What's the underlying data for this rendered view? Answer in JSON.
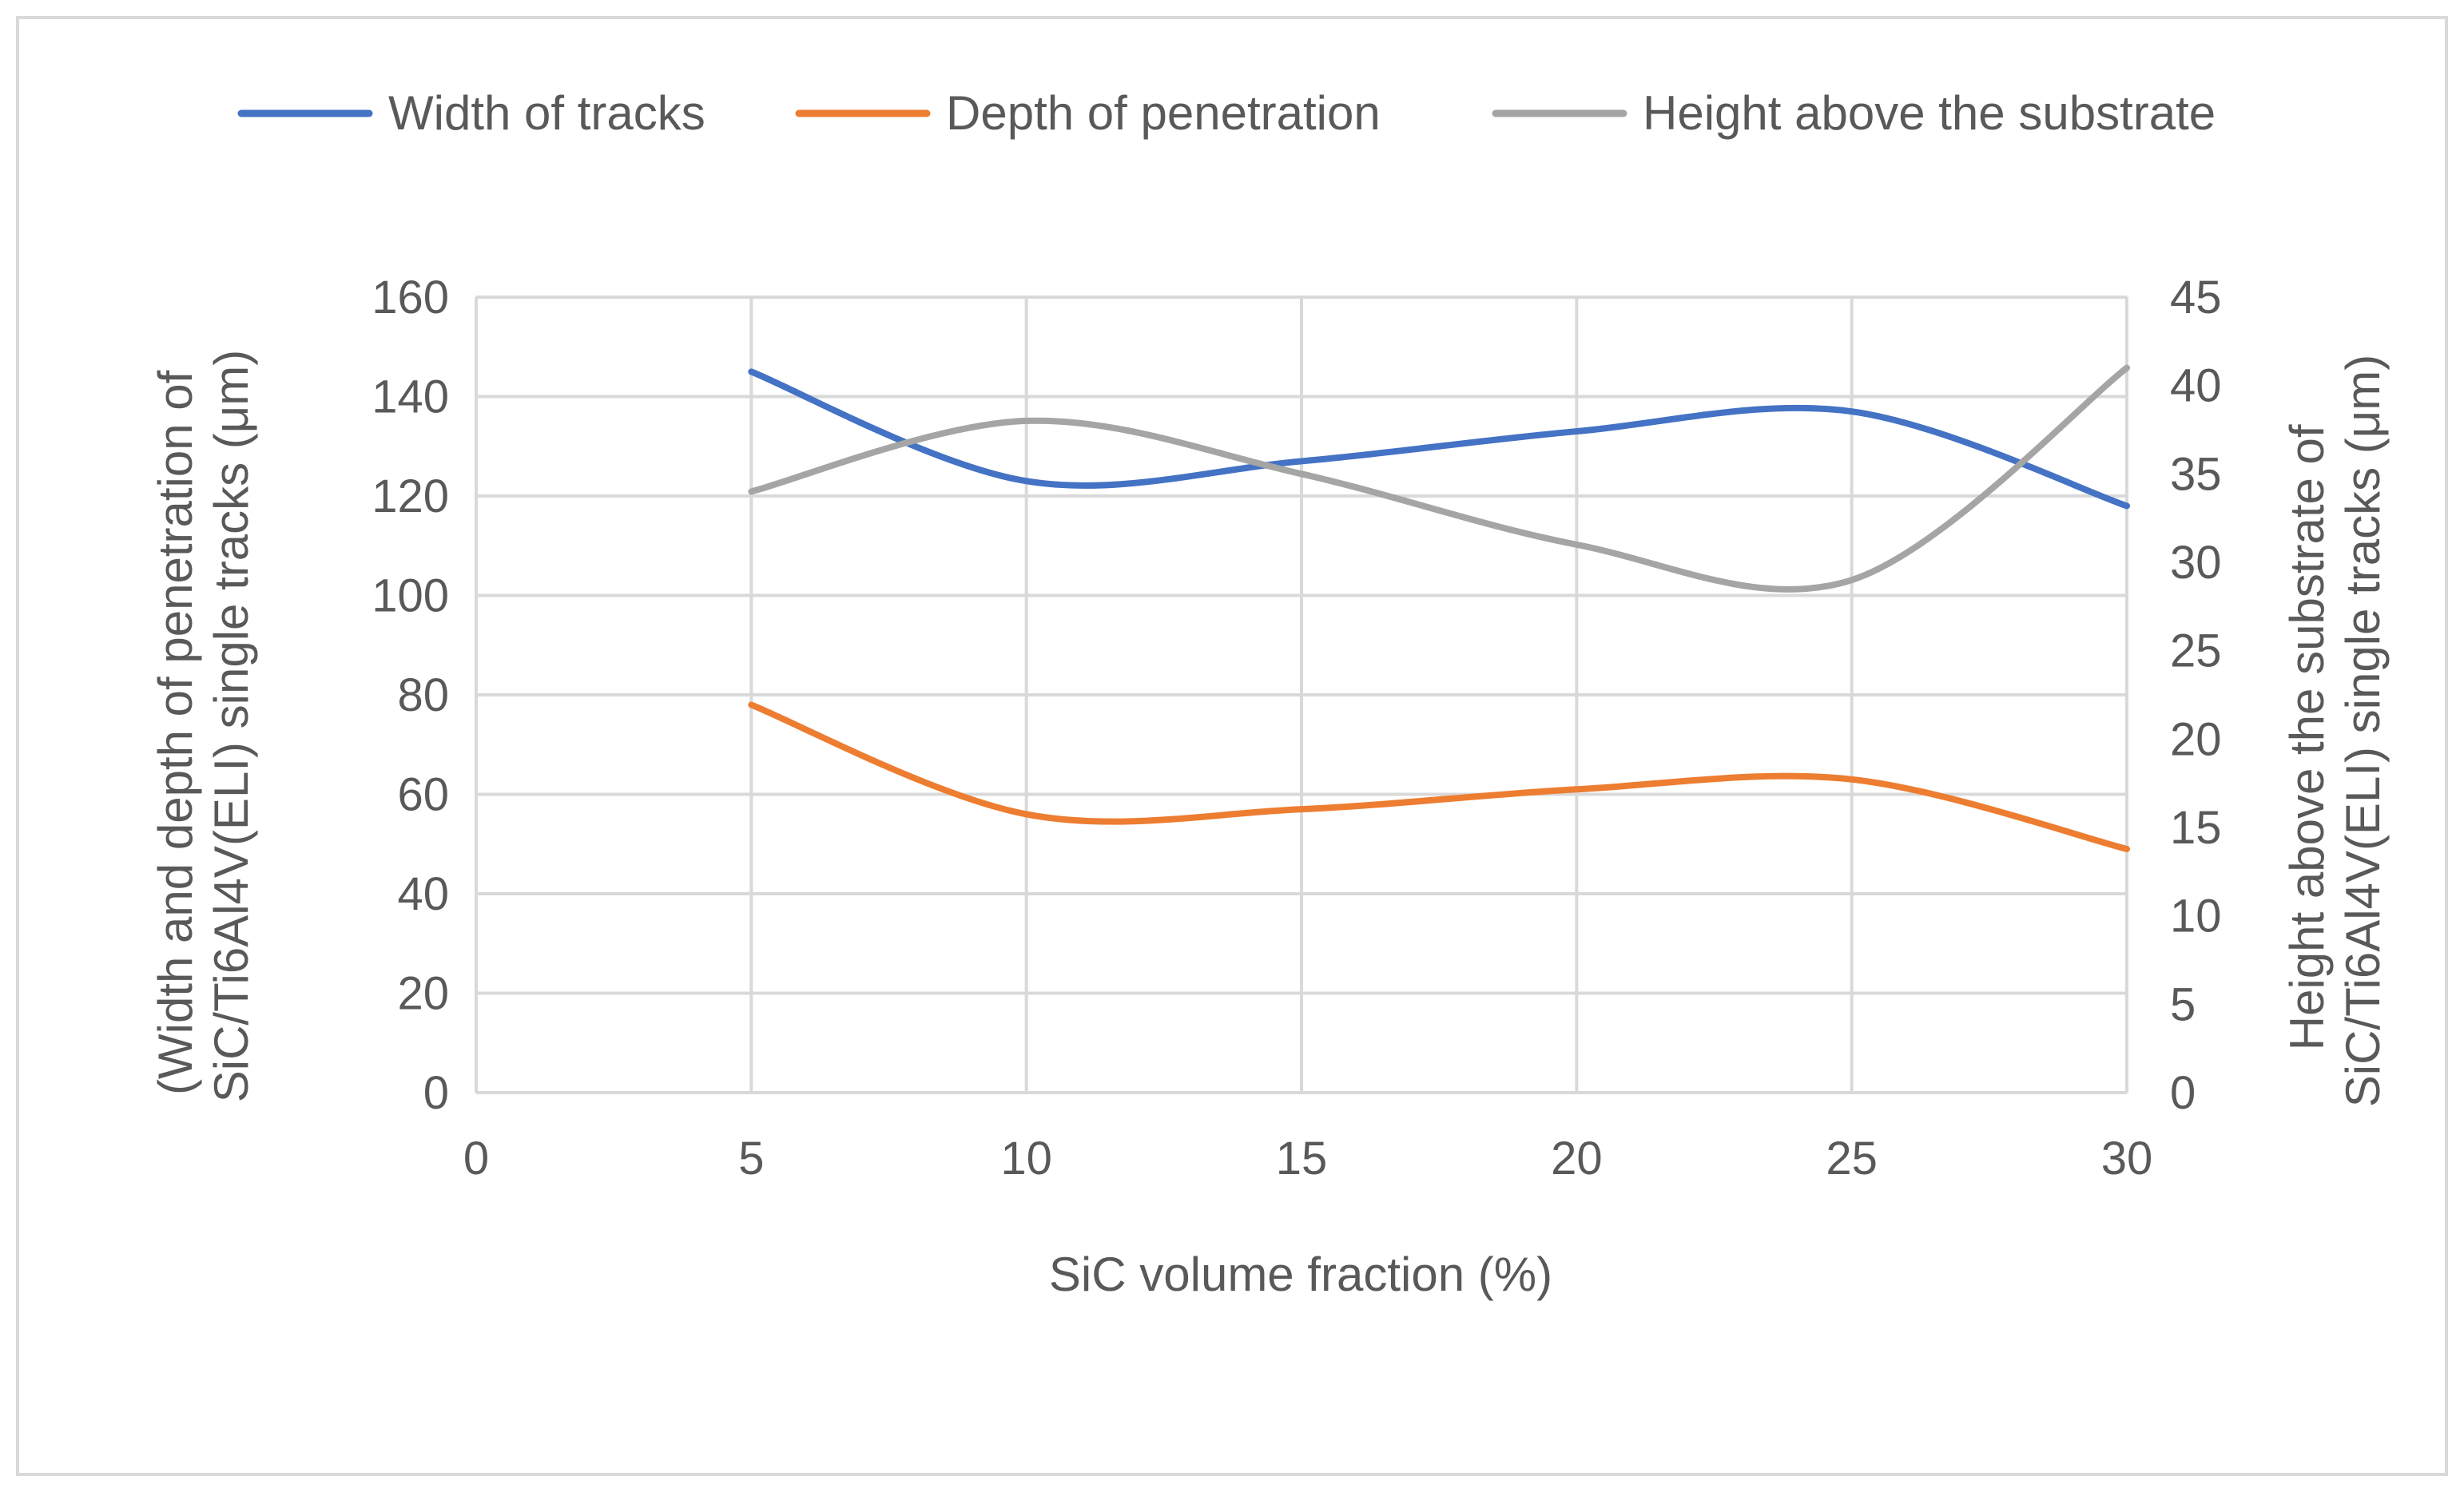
{
  "chart_data": {
    "type": "line",
    "title": "",
    "xlabel": "SiC volume fraction (%)",
    "ylabel_left": "(Width and depth of penetration of SiC/Ti6Al4V(ELI) single tracks (μm)",
    "ylabel_left_lines": [
      "(Width and depth of penetration of",
      "SiC/Ti6Al4V(ELI) single tracks (μm)"
    ],
    "ylabel_right": "Height above the substrate of SiC/Ti6Al4V(ELI) single tracks (μm)",
    "ylabel_right_lines": [
      "Height above the substrate of",
      "SiC/Ti6Al4V(ELI) single tracks (μm)"
    ],
    "xlim": [
      0,
      30
    ],
    "ylim_left": [
      0,
      160
    ],
    "ylim_right": [
      0,
      45
    ],
    "x_ticks": [
      "0",
      "5",
      "10",
      "15",
      "20",
      "25",
      "30"
    ],
    "y_left_ticks": [
      "0",
      "20",
      "40",
      "60",
      "80",
      "100",
      "120",
      "140",
      "160"
    ],
    "y_right_ticks": [
      "0",
      "5",
      "10",
      "15",
      "20",
      "25",
      "30",
      "35",
      "40",
      "45"
    ],
    "legend_position": "top",
    "x": [
      5,
      10,
      15,
      20,
      25,
      30
    ],
    "series": [
      {
        "name": "Width of tracks",
        "axis": "left",
        "color": "#4472c4",
        "values": [
          145,
          123,
          127,
          133,
          137,
          118
        ]
      },
      {
        "name": "Depth of penetration",
        "axis": "left",
        "color": "#ed7d31",
        "values": [
          78,
          56,
          57,
          61,
          63,
          49
        ]
      },
      {
        "name": "Height above the substrate",
        "axis": "right",
        "color": "#a5a5a5",
        "values": [
          34,
          38,
          35,
          31,
          29,
          41
        ]
      }
    ]
  }
}
